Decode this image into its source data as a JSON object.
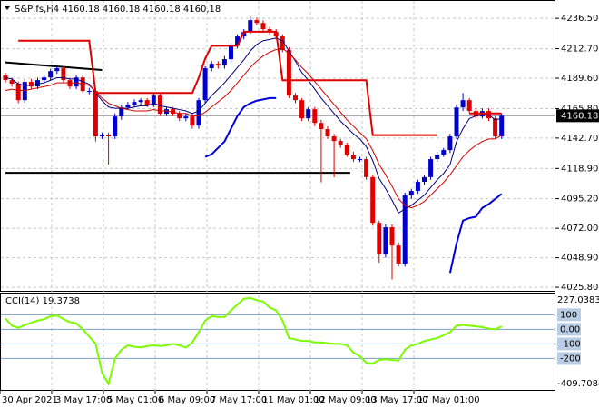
{
  "chart_data": [
    {
      "type": "candlestick",
      "title": "S&P,fs,H4  4160.18 4160.18 4160.18 4160,18",
      "x_labels": [
        "30 Apr 2021",
        "3 May 17:00",
        "5 May 01:00",
        "6 May 09:00",
        "7 May 17:00",
        "11 May 01:00",
        "12 May 09:00",
        "13 May 17:00",
        "17 May 01:00"
      ],
      "open": [
        4192,
        4188.1,
        4185.3,
        4172.4,
        4186.7,
        4183.1,
        4188.1,
        4190.2,
        4195.2,
        4197.4,
        4188.1,
        4183.1,
        4190.2,
        4179.6,
        4179.6,
        4144.0,
        4145.4,
        4144.0,
        4159.6,
        4166.7,
        4168.9,
        4171.0,
        4172.4,
        4168.9,
        4176.0,
        4161.8,
        4165.3,
        4161.8,
        4158.2,
        4159.6,
        4152.5,
        4172.4,
        4197.4,
        4200.9,
        4199.5,
        4204.5,
        4215.1,
        4222.3,
        4225.8,
        4235.1,
        4232.9,
        4228.0,
        4225.8,
        4222.3,
        4211.6,
        4176.0,
        4172.4,
        4158.2,
        4165.3,
        4154.6,
        4149.7,
        4144.0,
        4140.4,
        4136.9,
        4129.7,
        4126.2,
        4126.2,
        4112.1,
        4076.3,
        4051.4,
        4072.8,
        4058.5,
        4044.3,
        4097.7,
        4101.3,
        4108.4,
        4112.1,
        4126.2,
        4129.7,
        4133.3,
        4144.0,
        4166.7,
        4172.4,
        4163.9,
        4159.6,
        4163.9,
        4158.2,
        4144.0
      ],
      "high": [
        4194,
        4190,
        4187,
        4189,
        4189,
        4190,
        4192,
        4197,
        4199,
        4199,
        4190,
        4192,
        4192,
        4182,
        4182,
        4147,
        4147,
        4162,
        4169,
        4171,
        4173,
        4174,
        4174,
        4178,
        4178,
        4167,
        4167,
        4164,
        4162,
        4162,
        4174,
        4199,
        4203,
        4203,
        4207,
        4217,
        4224,
        4228,
        4238,
        4237,
        4235,
        4230,
        4228,
        4224,
        4214,
        4178,
        4174,
        4167,
        4167,
        4157,
        4152,
        4146,
        4142,
        4139,
        4132,
        4128,
        4128,
        4114,
        4078,
        4075,
        4075,
        4061,
        4100,
        4103,
        4110,
        4114,
        4128,
        4132,
        4135,
        4146,
        4169,
        4178,
        4174,
        4166,
        4166,
        4166,
        4160,
        4162
      ],
      "low": [
        4186,
        4183,
        4170,
        4170,
        4181,
        4181,
        4186,
        4188,
        4193,
        4186,
        4181,
        4181,
        4178,
        4177,
        4140,
        4142,
        4122,
        4142,
        4157,
        4165,
        4167,
        4169,
        4167,
        4167,
        4160,
        4160,
        4160,
        4156,
        4156,
        4150,
        4150,
        4170,
        4195,
        4197,
        4197,
        4202,
        4213,
        4220,
        4224,
        4231,
        4226,
        4224,
        4220,
        4210,
        4174,
        4170,
        4156,
        4156,
        4152,
        4108,
        4142,
        4112,
        4135,
        4128,
        4124,
        4124,
        4110,
        4074,
        4045,
        4049,
        4032,
        4042,
        4042,
        4095,
        4099,
        4106,
        4110,
        4124,
        4128,
        4131,
        4142,
        4164,
        4162,
        4158,
        4158,
        4156,
        4142,
        4142
      ],
      "close": [
        4188.1,
        4185.3,
        4172.4,
        4186.7,
        4183.1,
        4188.1,
        4190.2,
        4195.2,
        4197.4,
        4188.1,
        4183.1,
        4190.2,
        4179.6,
        4179.6,
        4144.0,
        4145.4,
        4144.0,
        4159.6,
        4166.7,
        4168.9,
        4171.0,
        4172.4,
        4168.9,
        4176.0,
        4161.8,
        4165.3,
        4161.8,
        4158.2,
        4159.6,
        4152.5,
        4172.4,
        4197.4,
        4200.9,
        4199.5,
        4204.5,
        4215.1,
        4222.3,
        4225.8,
        4235.1,
        4232.9,
        4228.0,
        4225.8,
        4222.3,
        4211.6,
        4176.0,
        4172.4,
        4158.2,
        4165.3,
        4154.6,
        4149.7,
        4144.0,
        4140.4,
        4136.9,
        4129.7,
        4126.2,
        4126.2,
        4112.1,
        4076.3,
        4051.4,
        4072.8,
        4058.5,
        4044.3,
        4097.7,
        4101.3,
        4108.4,
        4112.1,
        4126.2,
        4129.7,
        4133.3,
        4144.0,
        4166.7,
        4172.4,
        4163.9,
        4159.6,
        4163.9,
        4158.2,
        4144.0,
        4160.18
      ],
      "up_color": "#0000cc",
      "down_color": "#e00000",
      "series": [
        {
          "color": "#000080",
          "width": 1,
          "values": [
            4190,
            4189,
            4185,
            4184,
            4184,
            4185,
            4186,
            4188,
            4190,
            4190,
            4189,
            4189,
            4187,
            4185,
            4178,
            4172,
            4167,
            4166,
            4166,
            4166,
            4167,
            4168,
            4168,
            4170,
            4168,
            4167,
            4166,
            4165,
            4164,
            4162,
            4164,
            4170,
            4176,
            4181,
            4186,
            4192,
            4198,
            4204,
            4211,
            4216,
            4219,
            4220,
            4221,
            4219,
            4211,
            4203,
            4194,
            4188,
            4181,
            4174,
            4168,
            4162,
            4156,
            4151,
            4146,
            4142,
            4136,
            4125,
            4111,
            4103,
            4094,
            4084,
            4087,
            4090,
            4094,
            4098,
            4104,
            4110,
            4115,
            4122,
            4140,
            4150,
            4158,
            4160,
            4161,
            4161,
            4157,
            4158
          ]
        },
        {
          "color": "#d00000",
          "width": 1,
          "values": [
            4180,
            4181,
            4180,
            4180,
            4181,
            4182,
            4183,
            4184,
            4186,
            4186,
            4186,
            4186,
            4185,
            4184,
            4179,
            4174,
            4170,
            4168,
            4166,
            4165,
            4164,
            4164,
            4164,
            4165,
            4164,
            4164,
            4163,
            4162,
            4162,
            4160,
            4160,
            4163,
            4167,
            4171,
            4175,
            4180,
            4186,
            4192,
            4198,
            4203,
            4207,
            4210,
            4212,
            4213,
            4209,
            4204,
            4198,
            4193,
            4187,
            4181,
            4175,
            4169,
            4163,
            4157,
            4152,
            4147,
            4142,
            4133,
            4122,
            4114,
            4105,
            4095,
            4090,
            4088,
            4090,
            4093,
            4098,
            4103,
            4108,
            4114,
            4121,
            4128,
            4133,
            4137,
            4140,
            4142,
            4142,
            4145
          ]
        },
        {
          "color": "#e00000",
          "width": 2,
          "values": [
            null,
            null,
            4219,
            4219,
            4219,
            4219,
            4219,
            4219,
            4219,
            4219,
            4219,
            4219,
            4219,
            4219,
            4178,
            4178,
            4178,
            4178,
            4178,
            4178,
            4178,
            4178,
            4178,
            4178,
            4178,
            4178,
            4178,
            4178,
            4178,
            4178,
            4190,
            4205,
            4215,
            4215,
            4215,
            4215,
            4215,
            4226,
            4226,
            4226,
            4226,
            4226,
            4226,
            4188,
            4188,
            4188,
            4188,
            4188,
            4188,
            4188,
            4188,
            4188,
            4188,
            4188,
            4188,
            4188,
            4188,
            4145,
            4145,
            4145,
            4145,
            4145,
            4145,
            4145,
            4145,
            4145,
            4145,
            4145,
            null,
            null,
            null,
            null,
            4162,
            4162,
            4162,
            4162,
            4162,
            4162
          ]
        },
        {
          "color": "#0000dd",
          "width": 2,
          "values": [
            null,
            null,
            null,
            null,
            null,
            null,
            null,
            null,
            null,
            null,
            null,
            null,
            null,
            null,
            null,
            null,
            null,
            null,
            null,
            null,
            null,
            null,
            null,
            null,
            null,
            null,
            null,
            null,
            null,
            null,
            null,
            4128,
            4130,
            4135,
            4140,
            4150,
            4160,
            4167,
            4170,
            4172,
            4173,
            4174,
            4174,
            null,
            null,
            null,
            null,
            null,
            null,
            null,
            null,
            null,
            null,
            null,
            null,
            null,
            null,
            null,
            null,
            null,
            null,
            null,
            null,
            null,
            null,
            null,
            null,
            null,
            null,
            4037,
            4060,
            4078,
            4080,
            4081,
            4088,
            4091,
            4095,
            4099
          ]
        }
      ],
      "segments": [
        {
          "start": 0,
          "end": 15,
          "values": [
            4202,
            4196
          ]
        },
        {
          "start": 0,
          "end": 53.5,
          "values": [
            4115.5,
            4115.5
          ]
        }
      ],
      "last_price": 4160.18,
      "ylim": [
        4023,
        4248
      ],
      "yticks": [
        {
          "value": 4236.5,
          "label": "4236.50"
        },
        {
          "value": 4212.7,
          "label": "4212.70"
        },
        {
          "value": 4189.6,
          "label": "4189.60"
        },
        {
          "value": 4165.8,
          "label": "4165.80"
        },
        {
          "value": 4142.7,
          "label": "4142.70"
        },
        {
          "value": 4118.9,
          "label": "4118.90"
        },
        {
          "value": 4095.2,
          "label": "4095.20"
        },
        {
          "value": 4072,
          "label": "4072.00"
        },
        {
          "value": 4048.9,
          "label": "4048.90"
        },
        {
          "value": 4025.8,
          "label": "4025.80"
        }
      ],
      "grid": true
    },
    {
      "type": "line",
      "title": "CCI(14) 19.3738",
      "color": "#7cfc00",
      "values": [
        75,
        25,
        10,
        30,
        45,
        60,
        70,
        90,
        95,
        70,
        50,
        40,
        0,
        -50,
        -100,
        -300,
        -375,
        -200,
        -140,
        -110,
        -120,
        -125,
        -115,
        -110,
        -115,
        -110,
        -100,
        -110,
        -125,
        -90,
        -20,
        60,
        90,
        85,
        85,
        130,
        170,
        210,
        215,
        200,
        190,
        150,
        130,
        60,
        -60,
        -70,
        -80,
        -80,
        -90,
        -90,
        -95,
        -100,
        -100,
        -110,
        -160,
        -185,
        -230,
        -235,
        -210,
        -205,
        -210,
        -215,
        -140,
        -110,
        -100,
        -80,
        -70,
        -60,
        -40,
        -20,
        25,
        30,
        25,
        20,
        15,
        5,
        0,
        19.3738
      ],
      "ylim": [
        -409.7088,
        227.0383
      ],
      "yticks": [
        100,
        {
          "value": 0,
          "label": "0.00"
        },
        -100,
        -200
      ]
    }
  ]
}
